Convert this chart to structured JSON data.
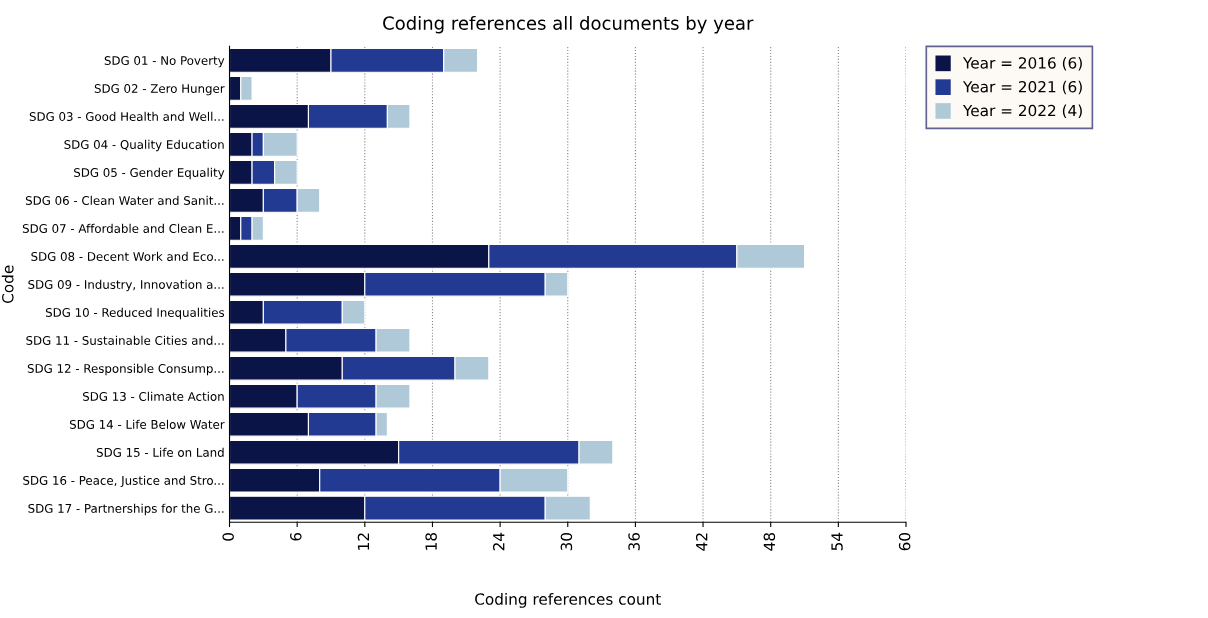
{
  "chart_data": {
    "type": "bar",
    "orientation": "horizontal",
    "stacked": true,
    "title": "Coding references all documents by year",
    "xlabel": "Coding references count",
    "ylabel": "Code",
    "categories": [
      "SDG 01 - No Poverty",
      "SDG 02 - Zero Hunger",
      "SDG 03 - Good Health and Well...",
      "SDG 04 - Quality Education",
      "SDG 05 - Gender Equality",
      "SDG 06 - Clean Water and Sanit...",
      "SDG 07 - Affordable and Clean E...",
      "SDG 08 - Decent Work and Eco...",
      "SDG 09 - Industry, Innovation a...",
      "SDG 10 - Reduced Inequalities",
      "SDG 11 - Sustainable Cities and...",
      "SDG 12 - Responsible Consump...",
      "SDG 13 - Climate Action",
      "SDG 14 - Life Below Water",
      "SDG 15 - Life on Land",
      "SDG 16 - Peace, Justice and Stro...",
      "SDG 17 - Partnerships for the G..."
    ],
    "series": [
      {
        "name": "Year = 2016 (6)",
        "color": "#0b1446",
        "values": [
          9,
          1,
          7,
          2,
          2,
          3,
          1,
          23,
          12,
          3,
          5,
          10,
          6,
          7,
          15,
          8,
          12
        ]
      },
      {
        "name": "Year = 2021 (6)",
        "color": "#233a92",
        "values": [
          10,
          0,
          7,
          1,
          2,
          3,
          1,
          22,
          16,
          7,
          8,
          10,
          7,
          6,
          16,
          16,
          16
        ]
      },
      {
        "name": "Year = 2022 (4)",
        "color": "#afc9d9",
        "values": [
          3,
          1,
          2,
          3,
          2,
          2,
          1,
          6,
          2,
          2,
          3,
          3,
          3,
          1,
          3,
          6,
          4
        ]
      }
    ],
    "xlim": [
      0,
      60
    ],
    "xticks": [
      0,
      6,
      12,
      18,
      24,
      30,
      36,
      42,
      48,
      54,
      60
    ],
    "grid": "x",
    "legend": "right"
  }
}
